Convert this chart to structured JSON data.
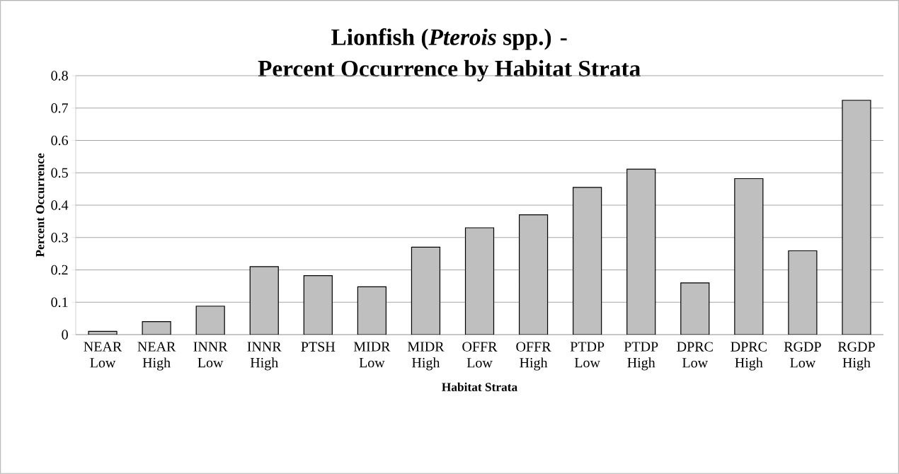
{
  "chart_data": {
    "type": "bar",
    "title": "Lionfish (*Pterois* spp.) -",
    "subtitle": "Percent Occurrence by Habitat Strata",
    "xlabel": "Habitat Strata",
    "ylabel": "Percent Occurrence",
    "categories": [
      "NEAR Low",
      "NEAR High",
      "INNR Low",
      "INNR High",
      "PTSH",
      "MIDR Low",
      "MIDR High",
      "OFFR Low",
      "OFFR High",
      "PTDP Low",
      "PTDP High",
      "DPRC Low",
      "DPRC High",
      "RGDP Low",
      "RGDP High"
    ],
    "values": [
      0.01,
      0.04,
      0.088,
      0.21,
      0.182,
      0.148,
      0.27,
      0.33,
      0.37,
      0.455,
      0.511,
      0.16,
      0.482,
      0.259,
      0.724
    ],
    "color": "#bfbfbf",
    "ylim": [
      0,
      0.8
    ],
    "yticks": [
      0,
      0.1,
      0.2,
      0.3,
      0.4,
      0.5,
      0.6,
      0.7,
      0.8
    ],
    "grid": "y"
  }
}
